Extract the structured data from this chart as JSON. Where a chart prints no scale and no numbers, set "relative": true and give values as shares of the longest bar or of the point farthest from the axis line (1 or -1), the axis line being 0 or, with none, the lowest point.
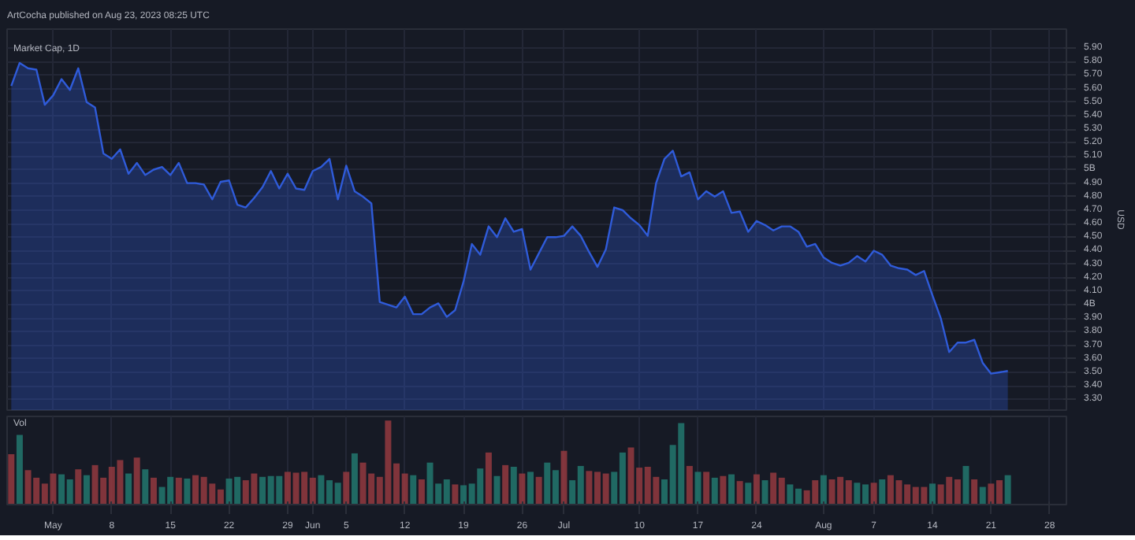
{
  "chart_data": [
    {
      "type": "area",
      "title": "Market Cap, 1D",
      "subtitle": "ArtCocha published on Aug 23, 2023 08:25 UTC",
      "ylabel": "USD",
      "tick_labels": "y",
      "x": [
        "2023-04-26",
        "2023-04-27",
        "2023-04-28",
        "2023-04-29",
        "2023-04-30",
        "2023-05-01",
        "2023-05-02",
        "2023-05-03",
        "2023-05-04",
        "2023-05-05",
        "2023-05-06",
        "2023-05-07",
        "2023-05-08",
        "2023-05-09",
        "2023-05-10",
        "2023-05-11",
        "2023-05-12",
        "2023-05-13",
        "2023-05-14",
        "2023-05-15",
        "2023-05-16",
        "2023-05-17",
        "2023-05-18",
        "2023-05-19",
        "2023-05-20",
        "2023-05-21",
        "2023-05-22",
        "2023-05-23",
        "2023-05-24",
        "2023-05-25",
        "2023-05-26",
        "2023-05-27",
        "2023-05-28",
        "2023-05-29",
        "2023-05-30",
        "2023-05-31",
        "2023-06-01",
        "2023-06-02",
        "2023-06-03",
        "2023-06-04",
        "2023-06-05",
        "2023-06-06",
        "2023-06-07",
        "2023-06-08",
        "2023-06-09",
        "2023-06-10",
        "2023-06-11",
        "2023-06-12",
        "2023-06-13",
        "2023-06-14",
        "2023-06-15",
        "2023-06-16",
        "2023-06-17",
        "2023-06-18",
        "2023-06-19",
        "2023-06-20",
        "2023-06-21",
        "2023-06-22",
        "2023-06-23",
        "2023-06-24",
        "2023-06-25",
        "2023-06-26",
        "2023-06-27",
        "2023-06-28",
        "2023-06-29",
        "2023-06-30",
        "2023-07-01",
        "2023-07-02",
        "2023-07-03",
        "2023-07-04",
        "2023-07-05",
        "2023-07-06",
        "2023-07-07",
        "2023-07-08",
        "2023-07-09",
        "2023-07-10",
        "2023-07-11",
        "2023-07-12",
        "2023-07-13",
        "2023-07-14",
        "2023-07-15",
        "2023-07-16",
        "2023-07-17",
        "2023-07-18",
        "2023-07-19",
        "2023-07-20",
        "2023-07-21",
        "2023-07-22",
        "2023-07-23",
        "2023-07-24",
        "2023-07-25",
        "2023-07-26",
        "2023-07-27",
        "2023-07-28",
        "2023-07-29",
        "2023-07-30",
        "2023-07-31",
        "2023-08-01",
        "2023-08-02",
        "2023-08-03",
        "2023-08-04",
        "2023-08-05",
        "2023-08-06",
        "2023-08-07",
        "2023-08-08",
        "2023-08-09",
        "2023-08-10",
        "2023-08-11",
        "2023-08-12",
        "2023-08-13",
        "2023-08-14",
        "2023-08-15",
        "2023-08-16",
        "2023-08-17",
        "2023-08-18",
        "2023-08-19",
        "2023-08-20",
        "2023-08-21",
        "2023-08-22",
        "2023-08-23"
      ],
      "series": [
        {
          "color": "#2f5bd9",
          "values": [
            5.62,
            5.79,
            5.75,
            5.74,
            5.48,
            5.55,
            5.67,
            5.59,
            5.75,
            5.5,
            5.46,
            5.12,
            5.08,
            5.15,
            4.97,
            5.05,
            4.96,
            5.0,
            5.02,
            4.96,
            5.05,
            4.9,
            4.9,
            4.89,
            4.78,
            4.91,
            4.92,
            4.74,
            4.72,
            4.79,
            4.87,
            4.99,
            4.86,
            4.97,
            4.86,
            4.85,
            4.99,
            5.02,
            5.08,
            4.78,
            5.03,
            4.84,
            4.8,
            4.75,
            4.02,
            4.0,
            3.98,
            4.06,
            3.93,
            3.93,
            3.98,
            4.01,
            3.91,
            3.96,
            4.17,
            4.45,
            4.37,
            4.58,
            4.5,
            4.64,
            4.54,
            4.56,
            4.26,
            4.38,
            4.5,
            4.5,
            4.51,
            4.58,
            4.51,
            4.39,
            4.28,
            4.41,
            4.72,
            4.7,
            4.64,
            4.59,
            4.51,
            4.9,
            5.08,
            5.14,
            4.95,
            4.98,
            4.78,
            4.84,
            4.8,
            4.84,
            4.68,
            4.69,
            4.54,
            4.62,
            4.59,
            4.55,
            4.58,
            4.58,
            4.54,
            4.43,
            4.45,
            4.35,
            4.31,
            4.29,
            4.31,
            4.36,
            4.32,
            4.4,
            4.37,
            4.29,
            4.27,
            4.26,
            4.22,
            4.25,
            4.07,
            3.9,
            3.65,
            3.72,
            3.72,
            3.74,
            3.57,
            3.49,
            3.5,
            3.51
          ]
        }
      ],
      "xlim": [
        "2023-04-25T12:00",
        "2023-08-30"
      ],
      "xticks": [
        {
          "value": "2023-05-01",
          "label": null
        },
        {
          "value": "2023-05-08",
          "label": null
        },
        {
          "value": "2023-05-15",
          "label": null
        },
        {
          "value": "2023-05-22",
          "label": null
        },
        {
          "value": "2023-05-29",
          "label": null
        },
        {
          "value": "2023-06-01",
          "label": null
        },
        {
          "value": "2023-06-05",
          "label": null
        },
        {
          "value": "2023-06-12",
          "label": null
        },
        {
          "value": "2023-06-19",
          "label": null
        },
        {
          "value": "2023-06-26",
          "label": null
        },
        {
          "value": "2023-07-01",
          "label": null
        },
        {
          "value": "2023-07-10",
          "label": null
        },
        {
          "value": "2023-07-17",
          "label": null
        },
        {
          "value": "2023-07-24",
          "label": null
        },
        {
          "value": "2023-08-01",
          "label": null
        },
        {
          "value": "2023-08-07",
          "label": null
        },
        {
          "value": "2023-08-14",
          "label": null
        },
        {
          "value": "2023-08-21",
          "label": null
        },
        {
          "value": "2023-08-28",
          "label": null
        }
      ],
      "ylim": [
        3.22,
        6.04
      ],
      "yticks": [
        {
          "value": 3.3,
          "label": "3.30"
        },
        {
          "value": 3.4,
          "label": "3.40"
        },
        {
          "value": 3.5,
          "label": "3.50"
        },
        {
          "value": 3.6,
          "label": "3.60"
        },
        {
          "value": 3.7,
          "label": "3.70"
        },
        {
          "value": 3.8,
          "label": "3.80"
        },
        {
          "value": 3.9,
          "label": "3.90"
        },
        {
          "value": 4.0,
          "label": "4B"
        },
        {
          "value": 4.1,
          "label": "4.10"
        },
        {
          "value": 4.2,
          "label": "4.20"
        },
        {
          "value": 4.3,
          "label": "4.30"
        },
        {
          "value": 4.4,
          "label": "4.40"
        },
        {
          "value": 4.5,
          "label": "4.50"
        },
        {
          "value": 4.6,
          "label": "4.60"
        },
        {
          "value": 4.7,
          "label": "4.70"
        },
        {
          "value": 4.8,
          "label": "4.80"
        },
        {
          "value": 4.9,
          "label": "4.90"
        },
        {
          "value": 5.0,
          "label": "5B"
        },
        {
          "value": 5.1,
          "label": "5.10"
        },
        {
          "value": 5.2,
          "label": "5.20"
        },
        {
          "value": 5.3,
          "label": "5.30"
        },
        {
          "value": 5.4,
          "label": "5.40"
        },
        {
          "value": 5.5,
          "label": "5.50"
        },
        {
          "value": 5.6,
          "label": "5.60"
        },
        {
          "value": 5.7,
          "label": "5.70"
        },
        {
          "value": 5.8,
          "label": "5.80"
        },
        {
          "value": 5.9,
          "label": "5.90"
        }
      ],
      "grid": true
    },
    {
      "type": "bar",
      "relative": true,
      "annotations": [
        "Vol"
      ],
      "tick_labels": "x",
      "grid": "x",
      "x": [
        "2023-04-26",
        "2023-04-27",
        "2023-04-28",
        "2023-04-29",
        "2023-04-30",
        "2023-05-01",
        "2023-05-02",
        "2023-05-03",
        "2023-05-04",
        "2023-05-05",
        "2023-05-06",
        "2023-05-07",
        "2023-05-08",
        "2023-05-09",
        "2023-05-10",
        "2023-05-11",
        "2023-05-12",
        "2023-05-13",
        "2023-05-14",
        "2023-05-15",
        "2023-05-16",
        "2023-05-17",
        "2023-05-18",
        "2023-05-19",
        "2023-05-20",
        "2023-05-21",
        "2023-05-22",
        "2023-05-23",
        "2023-05-24",
        "2023-05-25",
        "2023-05-26",
        "2023-05-27",
        "2023-05-28",
        "2023-05-29",
        "2023-05-30",
        "2023-05-31",
        "2023-06-01",
        "2023-06-02",
        "2023-06-03",
        "2023-06-04",
        "2023-06-05",
        "2023-06-06",
        "2023-06-07",
        "2023-06-08",
        "2023-06-09",
        "2023-06-10",
        "2023-06-11",
        "2023-06-12",
        "2023-06-13",
        "2023-06-14",
        "2023-06-15",
        "2023-06-16",
        "2023-06-17",
        "2023-06-18",
        "2023-06-19",
        "2023-06-20",
        "2023-06-21",
        "2023-06-22",
        "2023-06-23",
        "2023-06-24",
        "2023-06-25",
        "2023-06-26",
        "2023-06-27",
        "2023-06-28",
        "2023-06-29",
        "2023-06-30",
        "2023-07-01",
        "2023-07-02",
        "2023-07-03",
        "2023-07-04",
        "2023-07-05",
        "2023-07-06",
        "2023-07-07",
        "2023-07-08",
        "2023-07-09",
        "2023-07-10",
        "2023-07-11",
        "2023-07-12",
        "2023-07-13",
        "2023-07-14",
        "2023-07-15",
        "2023-07-16",
        "2023-07-17",
        "2023-07-18",
        "2023-07-19",
        "2023-07-20",
        "2023-07-21",
        "2023-07-22",
        "2023-07-23",
        "2023-07-24",
        "2023-07-25",
        "2023-07-26",
        "2023-07-27",
        "2023-07-28",
        "2023-07-29",
        "2023-07-30",
        "2023-07-31",
        "2023-08-01",
        "2023-08-02",
        "2023-08-03",
        "2023-08-04",
        "2023-08-05",
        "2023-08-06",
        "2023-08-07",
        "2023-08-08",
        "2023-08-09",
        "2023-08-10",
        "2023-08-11",
        "2023-08-12",
        "2023-08-13",
        "2023-08-14",
        "2023-08-15",
        "2023-08-16",
        "2023-08-17",
        "2023-08-18",
        "2023-08-19",
        "2023-08-20",
        "2023-08-21",
        "2023-08-22",
        "2023-08-23"
      ],
      "values": [
        0.6,
        0.83,
        0.41,
        0.32,
        0.25,
        0.37,
        0.36,
        0.3,
        0.42,
        0.35,
        0.47,
        0.32,
        0.45,
        0.53,
        0.37,
        0.56,
        0.42,
        0.32,
        0.21,
        0.33,
        0.32,
        0.31,
        0.35,
        0.33,
        0.25,
        0.18,
        0.31,
        0.33,
        0.29,
        0.37,
        0.33,
        0.34,
        0.34,
        0.39,
        0.38,
        0.39,
        0.32,
        0.35,
        0.29,
        0.26,
        0.39,
        0.61,
        0.5,
        0.37,
        0.33,
        1.0,
        0.49,
        0.37,
        0.35,
        0.3,
        0.5,
        0.25,
        0.3,
        0.24,
        0.23,
        0.25,
        0.43,
        0.62,
        0.34,
        0.47,
        0.45,
        0.37,
        0.39,
        0.33,
        0.5,
        0.41,
        0.64,
        0.29,
        0.46,
        0.4,
        0.39,
        0.37,
        0.39,
        0.62,
        0.68,
        0.44,
        0.45,
        0.33,
        0.3,
        0.71,
        0.97,
        0.46,
        0.39,
        0.39,
        0.32,
        0.34,
        0.36,
        0.28,
        0.26,
        0.36,
        0.29,
        0.38,
        0.32,
        0.24,
        0.19,
        0.17,
        0.29,
        0.35,
        0.3,
        0.33,
        0.29,
        0.26,
        0.24,
        0.26,
        0.3,
        0.35,
        0.29,
        0.24,
        0.21,
        0.21,
        0.25,
        0.24,
        0.33,
        0.3,
        0.46,
        0.3,
        0.21,
        0.25,
        0.29,
        0.35
      ],
      "colors": [
        "#93393f",
        "#22786e",
        "#93393f",
        "#93393f",
        "#93393f",
        "#93393f",
        "#22786e",
        "#22786e",
        "#93393f",
        "#22786e",
        "#93393f",
        "#93393f",
        "#93393f",
        "#93393f",
        "#22786e",
        "#93393f",
        "#22786e",
        "#93393f",
        "#22786e",
        "#22786e",
        "#93393f",
        "#22786e",
        "#93393f",
        "#93393f",
        "#93393f",
        "#93393f",
        "#22786e",
        "#22786e",
        "#93393f",
        "#93393f",
        "#22786e",
        "#22786e",
        "#22786e",
        "#93393f",
        "#93393f",
        "#93393f",
        "#93393f",
        "#22786e",
        "#22786e",
        "#22786e",
        "#93393f",
        "#22786e",
        "#93393f",
        "#93393f",
        "#93393f",
        "#93393f",
        "#93393f",
        "#93393f",
        "#22786e",
        "#93393f",
        "#22786e",
        "#22786e",
        "#22786e",
        "#93393f",
        "#22786e",
        "#22786e",
        "#22786e",
        "#93393f",
        "#22786e",
        "#93393f",
        "#22786e",
        "#93393f",
        "#22786e",
        "#93393f",
        "#22786e",
        "#22786e",
        "#93393f",
        "#22786e",
        "#22786e",
        "#93393f",
        "#93393f",
        "#93393f",
        "#22786e",
        "#22786e",
        "#93393f",
        "#93393f",
        "#93393f",
        "#93393f",
        "#22786e",
        "#22786e",
        "#22786e",
        "#93393f",
        "#22786e",
        "#93393f",
        "#22786e",
        "#93393f",
        "#22786e",
        "#93393f",
        "#22786e",
        "#93393f",
        "#22786e",
        "#93393f",
        "#93393f",
        "#22786e",
        "#22786e",
        "#93393f",
        "#93393f",
        "#22786e",
        "#93393f",
        "#93393f",
        "#93393f",
        "#22786e",
        "#22786e",
        "#93393f",
        "#22786e",
        "#93393f",
        "#93393f",
        "#93393f",
        "#93393f",
        "#93393f",
        "#22786e",
        "#93393f",
        "#93393f",
        "#93393f",
        "#22786e",
        "#93393f",
        "#22786e",
        "#93393f",
        "#93393f",
        "#22786e"
      ],
      "xlim": [
        "2023-04-25T12:00",
        "2023-08-30"
      ],
      "xticks": [
        {
          "value": "2023-05-01",
          "label": "May"
        },
        {
          "value": "2023-05-08",
          "label": "8"
        },
        {
          "value": "2023-05-15",
          "label": "15"
        },
        {
          "value": "2023-05-22",
          "label": "22"
        },
        {
          "value": "2023-05-29",
          "label": "29"
        },
        {
          "value": "2023-06-01",
          "label": "Jun"
        },
        {
          "value": "2023-06-05",
          "label": "5"
        },
        {
          "value": "2023-06-12",
          "label": "12"
        },
        {
          "value": "2023-06-19",
          "label": "19"
        },
        {
          "value": "2023-06-26",
          "label": "26"
        },
        {
          "value": "2023-07-01",
          "label": "Jul"
        },
        {
          "value": "2023-07-10",
          "label": "10"
        },
        {
          "value": "2023-07-17",
          "label": "17"
        },
        {
          "value": "2023-07-24",
          "label": "24"
        },
        {
          "value": "2023-08-01",
          "label": "Aug"
        },
        {
          "value": "2023-08-07",
          "label": "7"
        },
        {
          "value": "2023-08-14",
          "label": "14"
        },
        {
          "value": "2023-08-21",
          "label": "21"
        },
        {
          "value": "2023-08-28",
          "label": "28"
        }
      ]
    }
  ]
}
